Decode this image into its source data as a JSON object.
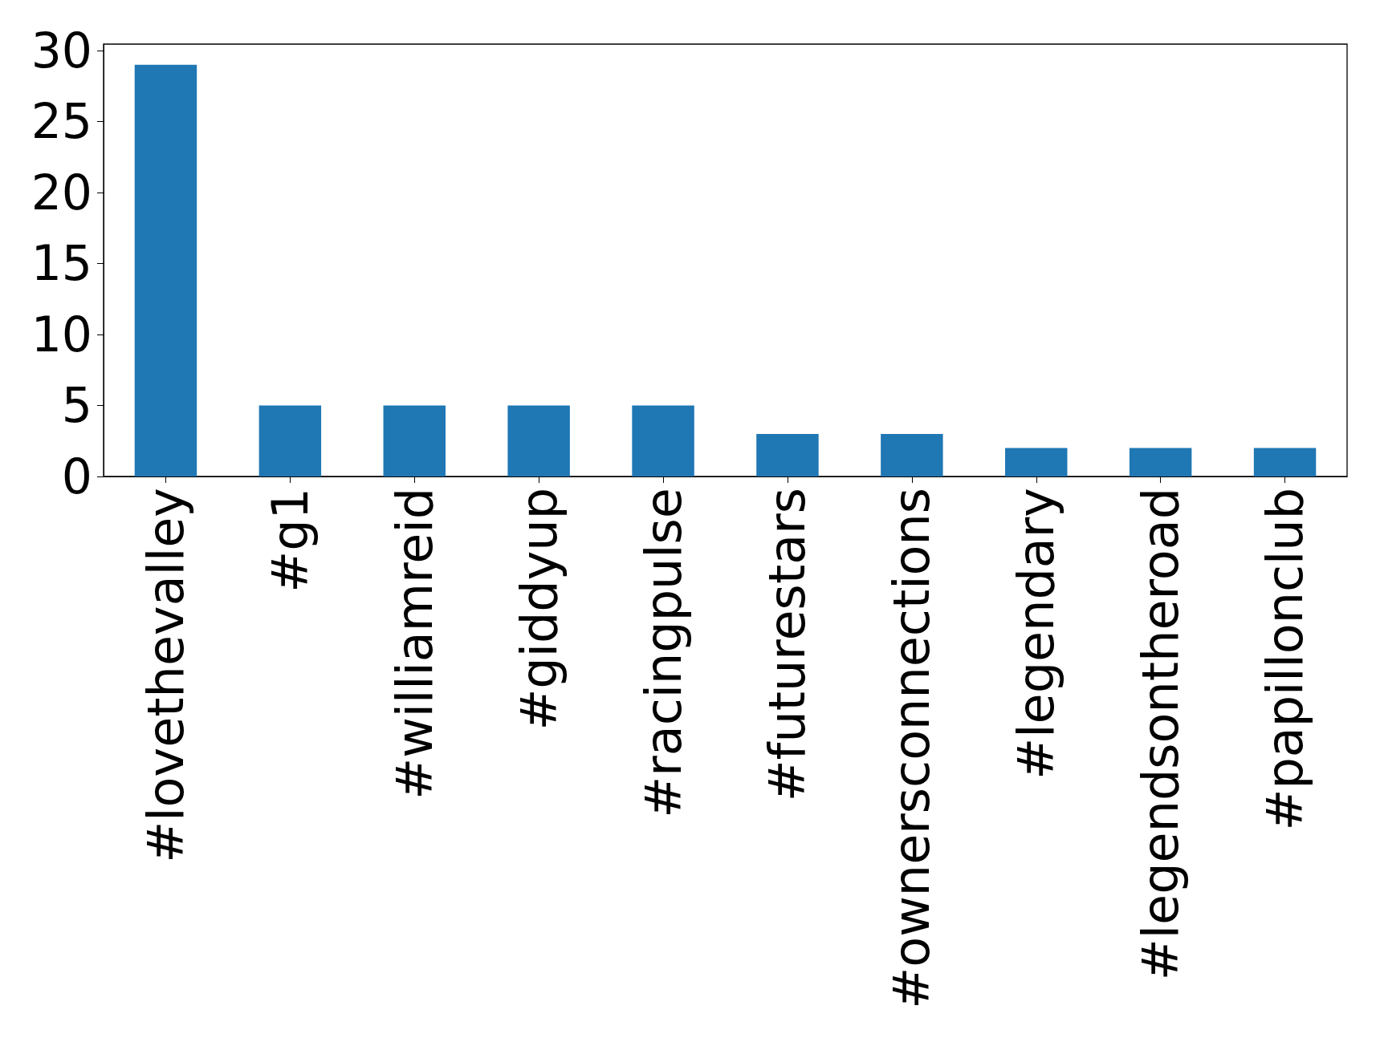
{
  "chart_data": {
    "type": "bar",
    "categories": [
      "#lovethevalley",
      "#g1",
      "#williamreid",
      "#giddyup",
      "#racingpulse",
      "#futurestars",
      "#ownersconnections",
      "#legendary",
      "#legendsontheroad",
      "#papillonclub"
    ],
    "values": [
      29,
      5,
      5,
      5,
      5,
      3,
      3,
      2,
      2,
      2
    ],
    "color": "#1f77b4",
    "ylim": [
      0,
      30.45
    ],
    "yticks": [
      0,
      5,
      10,
      15,
      20,
      25,
      30
    ],
    "grid": false
  }
}
